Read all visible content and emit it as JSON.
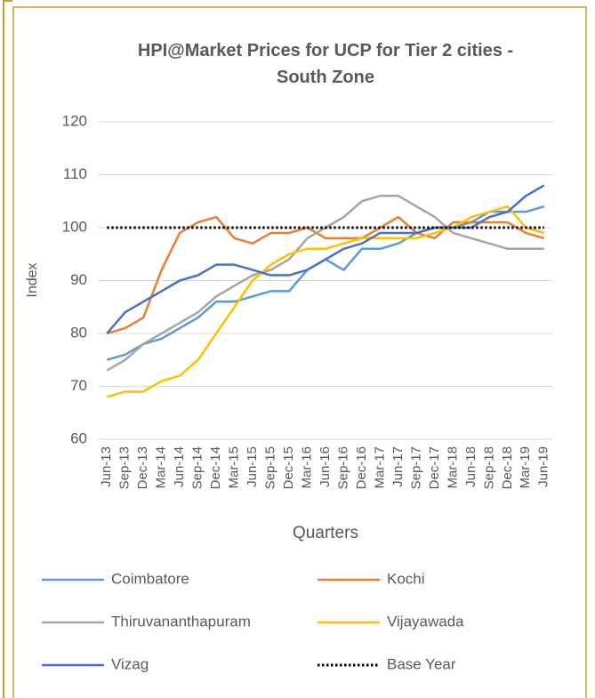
{
  "chart_data": {
    "type": "line",
    "title": "HPI@Market Prices for UCP for Tier 2 cities - South Zone",
    "x_label": "Quarters",
    "y_label": "Index",
    "categories": [
      "Jun-13",
      "Sep-13",
      "Dec-13",
      "Mar-14",
      "Jun-14",
      "Sep-14",
      "Dec-14",
      "Mar-15",
      "Jun-15",
      "Sep-15",
      "Dec-15",
      "Mar-16",
      "Jun-16",
      "Sep-16",
      "Dec-16",
      "Mar-17",
      "Jun-17",
      "Sep-17",
      "Dec-17",
      "Mar-18",
      "Jun-18",
      "Sep-18",
      "Dec-18",
      "Mar-19",
      "Jun-19"
    ],
    "series": [
      {
        "name": "Coimbatore",
        "color": "#5b9bd5",
        "values": [
          75,
          76,
          78,
          79,
          81,
          83,
          86,
          86,
          87,
          88,
          88,
          92,
          94,
          92,
          96,
          96,
          97,
          99,
          100,
          100,
          101,
          103,
          103,
          103,
          104
        ]
      },
      {
        "name": "Kochi",
        "color": "#ed7d31",
        "values": [
          80,
          81,
          83,
          92,
          99,
          101,
          102,
          98,
          97,
          99,
          99,
          100,
          98,
          98,
          98,
          100,
          102,
          99,
          98,
          101,
          101,
          101,
          101,
          99,
          98
        ]
      },
      {
        "name": "Thiruvananthapuram",
        "color": "#a5a5a5",
        "values": [
          73,
          75,
          78,
          80,
          82,
          84,
          87,
          89,
          91,
          92,
          94,
          98,
          100,
          102,
          105,
          106,
          106,
          104,
          102,
          99,
          98,
          97,
          96,
          96,
          96
        ]
      },
      {
        "name": "Vijayawada",
        "color": "#ffc000",
        "values": [
          68,
          69,
          69,
          71,
          72,
          75,
          80,
          85,
          90,
          93,
          95,
          96,
          96,
          97,
          98,
          98,
          98,
          98,
          99,
          100,
          102,
          103,
          104,
          100,
          99
        ]
      },
      {
        "name": "Vizag",
        "color": "#4472c4",
        "values": [
          80,
          84,
          86,
          88,
          90,
          91,
          93,
          93,
          92,
          91,
          91,
          92,
          94,
          96,
          97,
          99,
          99,
          99,
          100,
          100,
          100,
          102,
          103,
          106,
          108
        ]
      },
      {
        "name": "Base Year",
        "color": "#000000",
        "dash": "dotted",
        "values": [
          100,
          100,
          100,
          100,
          100,
          100,
          100,
          100,
          100,
          100,
          100,
          100,
          100,
          100,
          100,
          100,
          100,
          100,
          100,
          100,
          100,
          100,
          100,
          100,
          100
        ]
      }
    ],
    "ylim": [
      60,
      120
    ],
    "yticks": [
      60,
      70,
      80,
      90,
      100,
      110,
      120
    ],
    "grid": true,
    "legend": "bottom"
  }
}
